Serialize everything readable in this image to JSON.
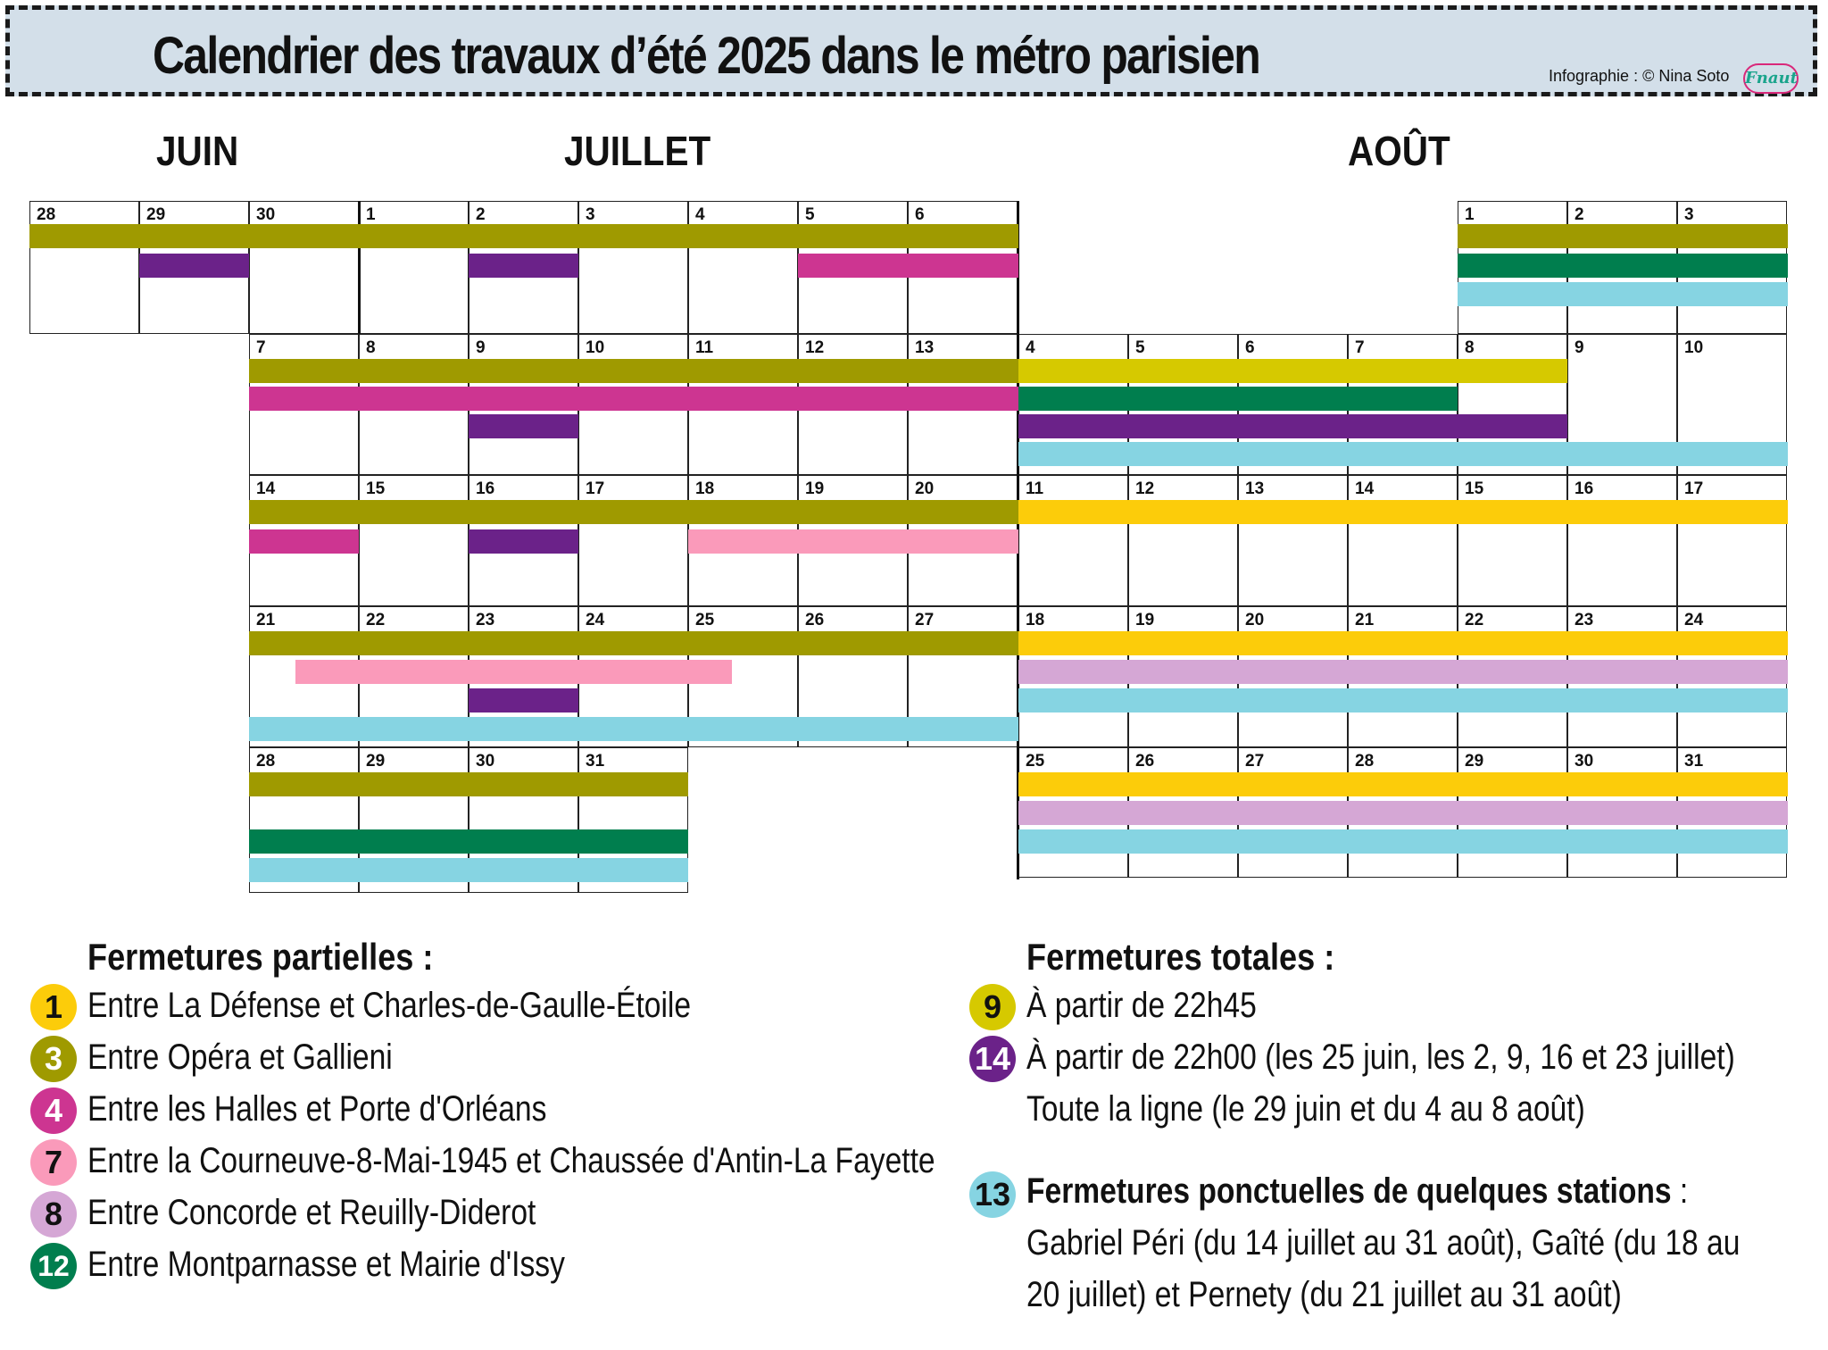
{
  "header": {
    "title": "Calendrier des travaux d’été 2025 dans le métro parisien",
    "credit": "Infographie : © Nina Soto",
    "logo_text": "Fnaut"
  },
  "months": [
    "JUIN",
    "JUILLET",
    "AOÛT"
  ],
  "colors": {
    "line1": "#fccc0a",
    "line3": "#9f9a00",
    "line4": "#cd3591",
    "line7": "#fa9aba",
    "line8": "#d5a7d5",
    "line9": "#d6c900",
    "line12": "#007e4e",
    "line13": "#86d4e2",
    "line14": "#6b2289"
  },
  "calendar": {
    "left_days": [
      [
        "28",
        "29",
        "30",
        "1",
        "2",
        "3",
        "4",
        "5",
        "6"
      ],
      [
        "7",
        "8",
        "9",
        "10",
        "11",
        "12",
        "13"
      ],
      [
        "14",
        "15",
        "16",
        "17",
        "18",
        "19",
        "20"
      ],
      [
        "21",
        "22",
        "23",
        "24",
        "25",
        "26",
        "27"
      ],
      [
        "28",
        "29",
        "30",
        "31"
      ]
    ],
    "right_days": [
      [
        "1",
        "2",
        "3"
      ],
      [
        "4",
        "5",
        "6",
        "7",
        "8",
        "9",
        "10"
      ],
      [
        "11",
        "12",
        "13",
        "14",
        "15",
        "16",
        "17"
      ],
      [
        "18",
        "19",
        "20",
        "21",
        "22",
        "23",
        "24"
      ],
      [
        "25",
        "26",
        "27",
        "28",
        "29",
        "30",
        "31"
      ]
    ]
  },
  "legend": {
    "partial_title": "Fermetures partielles :",
    "partial": [
      {
        "line": "1",
        "color": "#fccc0a",
        "dark": true,
        "text": "Entre La Défense et Charles-de-Gaulle-Étoile"
      },
      {
        "line": "3",
        "color": "#9f9a00",
        "dark": false,
        "text": "Entre Opéra et Gallieni"
      },
      {
        "line": "4",
        "color": "#cd3591",
        "dark": false,
        "text": "Entre les Halles et Porte d'Orléans"
      },
      {
        "line": "7",
        "color": "#fa9aba",
        "dark": true,
        "text": "Entre la Courneuve-8-Mai-1945 et Chaussée d'Antin-La Fayette"
      },
      {
        "line": "8",
        "color": "#d5a7d5",
        "dark": true,
        "text": "Entre Concorde et Reuilly-Diderot"
      },
      {
        "line": "12",
        "color": "#007e4e",
        "dark": false,
        "text": "Entre Montparnasse et Mairie d'Issy"
      }
    ],
    "total_title": "Fermetures totales :",
    "total": [
      {
        "line": "9",
        "color": "#d6c900",
        "dark": true,
        "text": "À partir de 22h45"
      },
      {
        "line": "14",
        "color": "#6b2289",
        "dark": false,
        "text": "À partir de 22h00 (les 25 juin, les 2, 9, 16 et 23 juillet)",
        "text2": "Toute la ligne  (le 29 juin et du 4 au 8 août)"
      }
    ],
    "stations_line": "13",
    "stations_color": "#86d4e2",
    "stations_title": "Fermetures ponctuelles de quelques stations",
    "stations_colon": " :",
    "stations_text1": "Gabriel Péri  (du 14 juillet au 31 août), Gaîté  (du 18 au",
    "stations_text2": "20 juillet) et Pernety (du 21 juillet au 31 août)"
  }
}
